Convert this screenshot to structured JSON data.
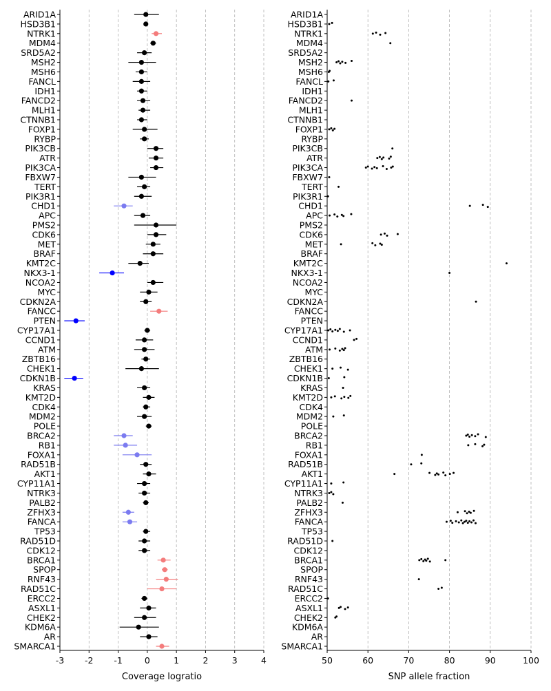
{
  "chart_data": [
    {
      "type": "scatter",
      "title": "",
      "xlabel": "Coverage logratio",
      "ylabel": "",
      "xlim": [
        -3,
        4
      ],
      "xticks": [
        "-3",
        "-2",
        "-1",
        "0",
        "1",
        "2",
        "3",
        "4"
      ],
      "xtick_values": [
        -3,
        -2,
        -1,
        0,
        1,
        2,
        3,
        4
      ],
      "grid": "vertical dashed",
      "colors": {
        "neutral": "#000000",
        "gain": "#f47c7c",
        "loss": "#7b7bf0",
        "deep_loss": "#0000ff"
      },
      "genes": [
        "ARID1A",
        "HSD3B1",
        "NTRK1",
        "MDM4",
        "SRD5A2",
        "MSH2",
        "MSH6",
        "FANCL",
        "IDH1",
        "FANCD2",
        "MLH1",
        "CTNNB1",
        "FOXP1",
        "RYBP",
        "PIK3CB",
        "ATR",
        "PIK3CA",
        "FBXW7",
        "TERT",
        "PIK3R1",
        "CHD1",
        "APC",
        "PMS2",
        "CDK6",
        "MET",
        "BRAF",
        "KMT2C",
        "NKX3-1",
        "NCOA2",
        "MYC",
        "CDKN2A",
        "FANCC",
        "PTEN",
        "CYP17A1",
        "CCND1",
        "ATM",
        "ZBTB16",
        "CHEK1",
        "CDKN1B",
        "KRAS",
        "KMT2D",
        "CDK4",
        "MDM2",
        "POLE",
        "BRCA2",
        "RB1",
        "FOXA1",
        "RAD51B",
        "AKT1",
        "CYP11A1",
        "NTRK3",
        "PALB2",
        "ZFHX3",
        "FANCA",
        "TP53",
        "RAD51D",
        "CDK12",
        "BRCA1",
        "SPOP",
        "RNF43",
        "RAD51C",
        "ERCC2",
        "ASXL1",
        "CHEK2",
        "KDM6A",
        "AR",
        "SMARCA1"
      ],
      "values": [
        {
          "gene": "ARID1A",
          "x": -0.05,
          "lo": -0.45,
          "hi": 0.4,
          "status": "neutral"
        },
        {
          "gene": "HSD3B1",
          "x": -0.05,
          "lo": -0.12,
          "hi": 0.02,
          "status": "neutral"
        },
        {
          "gene": "NTRK1",
          "x": 0.3,
          "lo": 0.15,
          "hi": 0.5,
          "status": "gain"
        },
        {
          "gene": "MDM4",
          "x": 0.2,
          "lo": 0.1,
          "hi": 0.3,
          "status": "neutral"
        },
        {
          "gene": "SRD5A2",
          "x": -0.1,
          "lo": -0.35,
          "hi": 0.15,
          "status": "neutral"
        },
        {
          "gene": "MSH2",
          "x": -0.2,
          "lo": -0.65,
          "hi": 0.3,
          "status": "neutral"
        },
        {
          "gene": "MSH6",
          "x": -0.2,
          "lo": -0.4,
          "hi": 0.0,
          "status": "neutral"
        },
        {
          "gene": "FANCL",
          "x": -0.2,
          "lo": -0.5,
          "hi": 0.1,
          "status": "neutral"
        },
        {
          "gene": "IDH1",
          "x": -0.2,
          "lo": -0.35,
          "hi": 0.0,
          "status": "neutral"
        },
        {
          "gene": "FANCD2",
          "x": -0.15,
          "lo": -0.35,
          "hi": 0.1,
          "status": "neutral"
        },
        {
          "gene": "MLH1",
          "x": -0.15,
          "lo": -0.3,
          "hi": 0.1,
          "status": "neutral"
        },
        {
          "gene": "CTNNB1",
          "x": -0.2,
          "lo": -0.35,
          "hi": 0.0,
          "status": "neutral"
        },
        {
          "gene": "FOXP1",
          "x": -0.1,
          "lo": -0.5,
          "hi": 0.35,
          "status": "neutral"
        },
        {
          "gene": "RYBP",
          "x": -0.1,
          "lo": -0.25,
          "hi": 0.05,
          "status": "neutral"
        },
        {
          "gene": "PIK3CB",
          "x": 0.3,
          "lo": 0.0,
          "hi": 0.55,
          "status": "neutral"
        },
        {
          "gene": "ATR",
          "x": 0.3,
          "lo": 0.05,
          "hi": 0.55,
          "status": "neutral"
        },
        {
          "gene": "PIK3CA",
          "x": 0.3,
          "lo": 0.1,
          "hi": 0.55,
          "status": "neutral"
        },
        {
          "gene": "FBXW7",
          "x": -0.2,
          "lo": -0.65,
          "hi": 0.3,
          "status": "neutral"
        },
        {
          "gene": "TERT",
          "x": -0.1,
          "lo": -0.35,
          "hi": 0.1,
          "status": "neutral"
        },
        {
          "gene": "PIK3R1",
          "x": -0.2,
          "lo": -0.45,
          "hi": 0.15,
          "status": "neutral"
        },
        {
          "gene": "CHD1",
          "x": -0.8,
          "lo": -1.15,
          "hi": -0.5,
          "status": "loss"
        },
        {
          "gene": "APC",
          "x": -0.15,
          "lo": -0.45,
          "hi": 0.1,
          "status": "neutral"
        },
        {
          "gene": "PMS2",
          "x": 0.3,
          "lo": -0.45,
          "hi": 1.0,
          "status": "neutral"
        },
        {
          "gene": "CDK6",
          "x": 0.3,
          "lo": 0.0,
          "hi": 0.65,
          "status": "neutral"
        },
        {
          "gene": "MET",
          "x": 0.2,
          "lo": -0.05,
          "hi": 0.45,
          "status": "neutral"
        },
        {
          "gene": "BRAF",
          "x": 0.2,
          "lo": -0.15,
          "hi": 0.55,
          "status": "neutral"
        },
        {
          "gene": "KMT2C",
          "x": -0.25,
          "lo": -0.65,
          "hi": 0.05,
          "status": "neutral"
        },
        {
          "gene": "NKX3-1",
          "x": -1.2,
          "lo": -1.65,
          "hi": -0.8,
          "status": "deep_loss"
        },
        {
          "gene": "NCOA2",
          "x": 0.2,
          "lo": 0.0,
          "hi": 0.55,
          "status": "neutral"
        },
        {
          "gene": "MYC",
          "x": 0.05,
          "lo": -0.25,
          "hi": 0.35,
          "status": "neutral"
        },
        {
          "gene": "CDKN2A",
          "x": -0.05,
          "lo": -0.25,
          "hi": 0.15,
          "status": "neutral"
        },
        {
          "gene": "FANCC",
          "x": 0.4,
          "lo": 0.1,
          "hi": 0.7,
          "status": "gain"
        },
        {
          "gene": "PTEN",
          "x": -2.45,
          "lo": -2.85,
          "hi": -2.15,
          "status": "deep_loss"
        },
        {
          "gene": "CYP17A1",
          "x": 0.0,
          "lo": -0.1,
          "hi": 0.1,
          "status": "neutral"
        },
        {
          "gene": "CCND1",
          "x": -0.1,
          "lo": -0.4,
          "hi": 0.2,
          "status": "neutral"
        },
        {
          "gene": "ATM",
          "x": -0.1,
          "lo": -0.45,
          "hi": 0.25,
          "status": "neutral"
        },
        {
          "gene": "ZBTB16",
          "x": -0.05,
          "lo": -0.2,
          "hi": 0.1,
          "status": "neutral"
        },
        {
          "gene": "CHEK1",
          "x": -0.2,
          "lo": -0.75,
          "hi": 0.4,
          "status": "neutral"
        },
        {
          "gene": "CDKN1B",
          "x": -2.5,
          "lo": -2.85,
          "hi": -2.2,
          "status": "deep_loss"
        },
        {
          "gene": "KRAS",
          "x": -0.1,
          "lo": -0.35,
          "hi": 0.1,
          "status": "neutral"
        },
        {
          "gene": "KMT2D",
          "x": 0.05,
          "lo": -0.15,
          "hi": 0.25,
          "status": "neutral"
        },
        {
          "gene": "CDK4",
          "x": -0.05,
          "lo": -0.15,
          "hi": 0.1,
          "status": "neutral"
        },
        {
          "gene": "MDM2",
          "x": -0.1,
          "lo": -0.35,
          "hi": 0.15,
          "status": "neutral"
        },
        {
          "gene": "POLE",
          "x": 0.05,
          "lo": -0.05,
          "hi": 0.15,
          "status": "neutral"
        },
        {
          "gene": "BRCA2",
          "x": -0.8,
          "lo": -1.15,
          "hi": -0.5,
          "status": "loss"
        },
        {
          "gene": "RB1",
          "x": -0.75,
          "lo": -1.15,
          "hi": -0.35,
          "status": "loss"
        },
        {
          "gene": "FOXA1",
          "x": -0.35,
          "lo": -0.85,
          "hi": 0.15,
          "status": "loss"
        },
        {
          "gene": "RAD51B",
          "x": -0.05,
          "lo": -0.25,
          "hi": 0.15,
          "status": "neutral"
        },
        {
          "gene": "AKT1",
          "x": 0.05,
          "lo": -0.15,
          "hi": 0.3,
          "status": "neutral"
        },
        {
          "gene": "CYP11A1",
          "x": -0.1,
          "lo": -0.35,
          "hi": 0.1,
          "status": "neutral"
        },
        {
          "gene": "NTRK3",
          "x": -0.1,
          "lo": -0.3,
          "hi": 0.1,
          "status": "neutral"
        },
        {
          "gene": "PALB2",
          "x": -0.05,
          "lo": -0.15,
          "hi": 0.05,
          "status": "neutral"
        },
        {
          "gene": "ZFHX3",
          "x": -0.65,
          "lo": -0.85,
          "hi": -0.45,
          "status": "loss"
        },
        {
          "gene": "FANCA",
          "x": -0.6,
          "lo": -0.85,
          "hi": -0.35,
          "status": "loss"
        },
        {
          "gene": "TP53",
          "x": -0.05,
          "lo": -0.15,
          "hi": 0.1,
          "status": "neutral"
        },
        {
          "gene": "RAD51D",
          "x": -0.1,
          "lo": -0.3,
          "hi": 0.1,
          "status": "neutral"
        },
        {
          "gene": "CDK12",
          "x": -0.1,
          "lo": -0.3,
          "hi": 0.1,
          "status": "neutral"
        },
        {
          "gene": "BRCA1",
          "x": 0.55,
          "lo": 0.35,
          "hi": 0.8,
          "status": "gain"
        },
        {
          "gene": "SPOP",
          "x": 0.6,
          "lo": 0.5,
          "hi": 0.7,
          "status": "gain"
        },
        {
          "gene": "RNF43",
          "x": 0.65,
          "lo": 0.3,
          "hi": 1.05,
          "status": "gain"
        },
        {
          "gene": "RAD51C",
          "x": 0.5,
          "lo": 0.0,
          "hi": 1.0,
          "status": "gain"
        },
        {
          "gene": "ERCC2",
          "x": -0.1,
          "lo": -0.2,
          "hi": 0.0,
          "status": "neutral"
        },
        {
          "gene": "ASXL1",
          "x": 0.05,
          "lo": -0.25,
          "hi": 0.3,
          "status": "neutral"
        },
        {
          "gene": "CHEK2",
          "x": -0.1,
          "lo": -0.45,
          "hi": 0.3,
          "status": "neutral"
        },
        {
          "gene": "KDM6A",
          "x": -0.3,
          "lo": -0.95,
          "hi": 0.4,
          "status": "neutral"
        },
        {
          "gene": "AR",
          "x": 0.05,
          "lo": -0.25,
          "hi": 0.35,
          "status": "neutral"
        },
        {
          "gene": "SMARCA1",
          "x": 0.5,
          "lo": 0.3,
          "hi": 0.75,
          "status": "gain"
        }
      ]
    },
    {
      "type": "scatter",
      "title": "",
      "xlabel": "SNP allele fraction",
      "ylabel": "",
      "xlim": [
        50,
        100
      ],
      "xticks": [
        "50",
        "60",
        "70",
        "80",
        "90",
        "100"
      ],
      "xtick_values": [
        50,
        60,
        70,
        80,
        90,
        100
      ],
      "grid": "vertical dashed",
      "genes": [
        "ARID1A",
        "HSD3B1",
        "NTRK1",
        "MDM4",
        "SRD5A2",
        "MSH2",
        "MSH6",
        "FANCL",
        "IDH1",
        "FANCD2",
        "MLH1",
        "CTNNB1",
        "FOXP1",
        "RYBP",
        "PIK3CB",
        "ATR",
        "PIK3CA",
        "FBXW7",
        "TERT",
        "PIK3R1",
        "CHD1",
        "APC",
        "PMS2",
        "CDK6",
        "MET",
        "BRAF",
        "KMT2C",
        "NKX3-1",
        "NCOA2",
        "MYC",
        "CDKN2A",
        "FANCC",
        "PTEN",
        "CYP17A1",
        "CCND1",
        "ATM",
        "ZBTB16",
        "CHEK1",
        "CDKN1B",
        "KRAS",
        "KMT2D",
        "CDK4",
        "MDM2",
        "POLE",
        "BRCA2",
        "RB1",
        "FOXA1",
        "RAD51B",
        "AKT1",
        "CYP11A1",
        "NTRK3",
        "PALB2",
        "ZFHX3",
        "FANCA",
        "TP53",
        "RAD51D",
        "CDK12",
        "BRCA1",
        "SPOP",
        "RNF43",
        "RAD51C",
        "ERCC2",
        "ASXL1",
        "CHEK2",
        "KDM6A",
        "AR",
        "SMARCA1"
      ],
      "points": {
        "HSD3B1": [
          50.5,
          51.2
        ],
        "NTRK1": [
          61.2,
          62.0,
          63.0,
          64.3
        ],
        "MDM4": [
          65.5
        ],
        "MSH2": [
          52.3,
          52.8,
          53.2,
          53.7,
          54.5,
          56.0
        ],
        "MSH6": [
          50.4,
          50.6
        ],
        "FANCL": [
          50.3,
          51.6
        ],
        "FANCD2": [
          56.0
        ],
        "FOXP1": [
          50.5,
          51.0,
          51.4,
          51.8
        ],
        "PIK3CB": [
          66.0
        ],
        "ATR": [
          62.3,
          62.9,
          63.4,
          63.8,
          65.2,
          65.6
        ],
        "PIK3CA": [
          59.5,
          60.0,
          61.0,
          61.6,
          62.2,
          63.7,
          64.6,
          65.7,
          66.1
        ],
        "FBXW7": [
          50.5
        ],
        "TERT": [
          52.8
        ],
        "PIK3R1": [
          50.2
        ],
        "CHD1": [
          85.0,
          88.2,
          89.4
        ],
        "APC": [
          50.6,
          51.8,
          52.5,
          53.6,
          54.0,
          55.9
        ],
        "CDK6": [
          63.2,
          64.1,
          64.7,
          67.3
        ],
        "MET": [
          53.4,
          61.1,
          61.8,
          63.0,
          63.4
        ],
        "KMT2C": [
          94.0
        ],
        "NKX3-1": [
          80.0
        ],
        "CDKN2A": [
          86.5
        ],
        "CYP17A1": [
          50.3,
          50.8,
          51.3,
          52.0,
          52.6,
          53.1,
          54.1,
          55.6
        ],
        "CCND1": [
          56.6,
          57.2
        ],
        "ATM": [
          50.6,
          52.0,
          53.1,
          53.7,
          54.1,
          54.4
        ],
        "CHEK1": [
          51.3,
          53.3,
          55.1
        ],
        "CDKN1B": [
          50.4,
          54.2
        ],
        "KRAS": [
          53.9
        ],
        "KMT2D": [
          51.0,
          51.9,
          53.5,
          54.2,
          55.2,
          55.7
        ],
        "MDM2": [
          51.5,
          54.1
        ],
        "BRCA2": [
          84.1,
          84.5,
          84.9,
          85.5,
          86.3,
          87.0,
          88.9
        ],
        "RB1": [
          84.6,
          86.3,
          88.1,
          88.5
        ],
        "FOXA1": [
          73.2
        ],
        "RAD51B": [
          70.6,
          73.1
        ],
        "AKT1": [
          66.5,
          75.1,
          76.5,
          76.9,
          77.3,
          78.5,
          79.0,
          80.1,
          81.0
        ],
        "CYP11A1": [
          51.0,
          54.0
        ],
        "NTRK3": [
          50.5,
          51.0,
          51.5
        ],
        "PALB2": [
          53.8
        ],
        "ZFHX3": [
          82.0,
          83.8,
          84.3,
          84.8,
          85.2,
          86.0
        ],
        "FANCA": [
          79.3,
          80.3,
          80.7,
          81.6,
          82.3,
          82.9,
          83.3,
          83.7,
          84.1,
          84.5,
          84.9,
          85.4,
          85.9,
          86.4
        ],
        "RAD51D": [
          51.3
        ],
        "BRCA1": [
          72.6,
          73.1,
          73.6,
          74.0,
          74.3,
          74.7,
          75.2,
          79.0
        ],
        "RNF43": [
          72.5
        ],
        "RAD51C": [
          77.3,
          78.1
        ],
        "ERCC2": [
          50.2
        ],
        "ASXL1": [
          52.9,
          53.3,
          54.4,
          55.1
        ],
        "CHEK2": [
          52.0,
          52.3
        ]
      }
    }
  ]
}
